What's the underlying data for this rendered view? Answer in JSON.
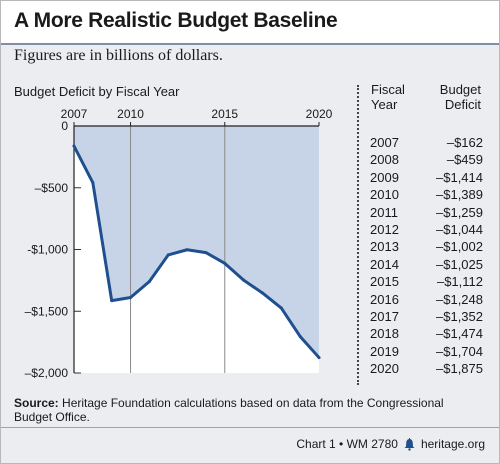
{
  "header": {
    "title": "A More Realistic Budget Baseline",
    "subtitle": "Figures are in billions of dollars."
  },
  "chart_data": {
    "type": "area",
    "title": "Budget Deficit by Fiscal Year",
    "xlabel": "",
    "ylabel": "",
    "x": [
      2007,
      2008,
      2009,
      2010,
      2011,
      2012,
      2013,
      2014,
      2015,
      2016,
      2017,
      2018,
      2019,
      2020
    ],
    "values": [
      -162,
      -459,
      -1414,
      -1389,
      -1259,
      -1044,
      -1002,
      -1025,
      -1112,
      -1248,
      -1352,
      -1474,
      -1704,
      -1875
    ],
    "xlim": [
      2007,
      2020
    ],
    "ylim": [
      -2000,
      0
    ],
    "x_ticks": [
      2007,
      2010,
      2015,
      2020
    ],
    "x_tick_labels": [
      "2007",
      "2010",
      "2015",
      "2020"
    ],
    "y_ticks": [
      0,
      -500,
      -1000,
      -1500,
      -2000
    ],
    "y_tick_labels": [
      "0",
      "–$500",
      "-$1,000",
      "–$1,500",
      "–$2,000"
    ],
    "vertical_gridlines_at": [
      2010,
      2015
    ],
    "line_color": "#1f4f8f",
    "fill_color": "#c7d4e8"
  },
  "table": {
    "year_header": "Fiscal\nYear",
    "deficit_header": "Budget\nDeficit",
    "rows": [
      {
        "year": "2007",
        "deficit": "–$162"
      },
      {
        "year": "2008",
        "deficit": "–$459"
      },
      {
        "year": "2009",
        "deficit": "–$1,414"
      },
      {
        "year": "2010",
        "deficit": "–$1,389"
      },
      {
        "year": "2011",
        "deficit": "–$1,259"
      },
      {
        "year": "2012",
        "deficit": "–$1,044"
      },
      {
        "year": "2013",
        "deficit": "–$1,002"
      },
      {
        "year": "2014",
        "deficit": "–$1,025"
      },
      {
        "year": "2015",
        "deficit": "–$1,112"
      },
      {
        "year": "2016",
        "deficit": "–$1,248"
      },
      {
        "year": "2017",
        "deficit": "–$1,352"
      },
      {
        "year": "2018",
        "deficit": "–$1,474"
      },
      {
        "year": "2019",
        "deficit": "–$1,704"
      },
      {
        "year": "2020",
        "deficit": "–$1,875"
      }
    ]
  },
  "footer": {
    "source_label": "Source:",
    "source_text": " Heritage Foundation calculations based on data from the Congressional Budget Office.",
    "chart_id": "Chart 1 • WM 2780",
    "icon": "liberty-bell-icon",
    "site": "heritage.org"
  }
}
